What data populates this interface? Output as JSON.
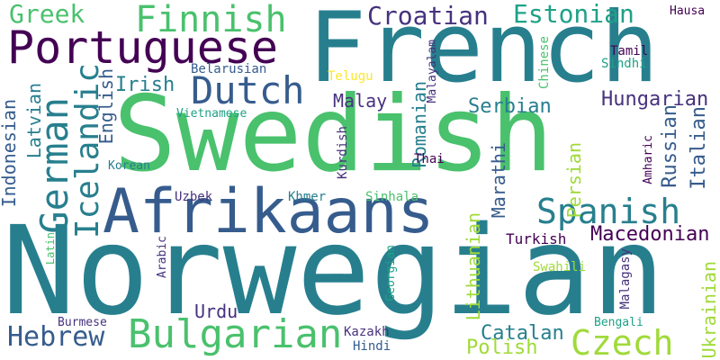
{
  "colors": {
    "background": "#ffffff",
    "palette": [
      "#440154",
      "#46327e",
      "#365c8d",
      "#277f8e",
      "#1fa187",
      "#4ac16d",
      "#a0da39",
      "#fde725"
    ]
  },
  "words": {
    "french": "French",
    "swedish": "Swedish",
    "norwegian": "Norwegian",
    "afrikaans": "Afrikaans",
    "portuguese": "Portuguese",
    "bulgarian": "Bulgarian",
    "finnish": "Finnish",
    "dutch": "Dutch",
    "croatian": "Croatian",
    "estonian": "Estonian",
    "spanish": "Spanish",
    "german": "German",
    "icelandic": "Icelandic",
    "greek": "Greek",
    "czech": "Czech",
    "hebrew": "Hebrew",
    "hungarian": "Hungarian",
    "macedonian": "Macedonian",
    "serbian": "Serbian",
    "romanian": "Romanian",
    "lithuanian": "Lithuanian",
    "russian": "Russian",
    "italian": "Italian",
    "ukrainian": "Ukrainian",
    "persian": "Persian",
    "marathi": "Marathi",
    "catalan": "Catalan",
    "polish": "Polish",
    "irish": "Irish",
    "english": "English",
    "latvian": "Latvian",
    "indonesian": "Indonesian",
    "malay": "Malay",
    "urdu": "Urdu",
    "turkish": "Turkish",
    "swahili": "Swahili",
    "bengali": "Bengali",
    "malagasy": "Malagasy",
    "amharic": "Amharic",
    "hausa": "Hausa",
    "tamil": "Tamil",
    "sindhi": "Sindhi",
    "chinese": "Chinese",
    "telugu": "Telugu",
    "malayalam": "Malayalam",
    "belarusian": "Belarusian",
    "vietnamese": "Vietnamese",
    "korean": "Korean",
    "kurdish": "Kurdish",
    "thai": "Thai",
    "uzbek": "Uzbek",
    "khmer": "Khmer",
    "sinhala": "Sinhala",
    "latin": "Latin",
    "arabic": "Arabic",
    "georgian": "Georgian",
    "burmese": "Burmese",
    "kazakh": "Kazakh",
    "hindi": "Hindi"
  }
}
